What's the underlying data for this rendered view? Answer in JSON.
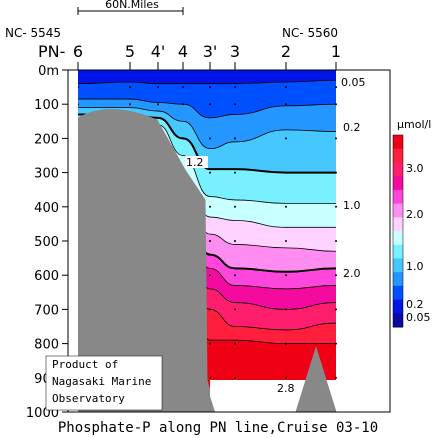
{
  "chart_data": {
    "type": "contour",
    "title": "Phosphate-P along PN line,Cruise 03-10",
    "scale_bar_label": "60N.Miles",
    "station_id_left": "NC- 5545",
    "station_id_right": "NC- 5560",
    "line_name": "PN-",
    "stations": [
      "6",
      "5",
      "4'",
      "4",
      "3'",
      "3",
      "2",
      "1"
    ],
    "depth_axis": {
      "unit_label": "0m",
      "ticks": [
        0,
        100,
        200,
        300,
        400,
        500,
        600,
        700,
        800,
        900,
        1000
      ],
      "tick_labels": [
        "0m",
        "100",
        "200",
        "300",
        "400",
        "500",
        "600",
        "700",
        "800",
        "900",
        "1000"
      ],
      "range": [
        0,
        1000
      ],
      "inverted": true
    },
    "contour_labels": [
      "0.05",
      "0.2",
      "1.2",
      "1.0",
      "2.0",
      "2.8"
    ],
    "colorbar": {
      "unit": "μmol/l",
      "tick_labels": [
        "3.0",
        "2.0",
        "1.0",
        "0.2",
        "0.05"
      ],
      "levels": [
        0.05,
        0.2,
        0.5,
        0.8,
        1.0,
        1.2,
        1.5,
        1.8,
        2.0,
        2.2,
        2.4,
        2.6,
        2.8,
        3.0
      ],
      "colors": [
        "#0a0aa0",
        "#0014e6",
        "#0050ff",
        "#2396ff",
        "#46c8ff",
        "#78f0ff",
        "#c8ffff",
        "#ffd2ff",
        "#ff8cf0",
        "#ff46dc",
        "#f50aa0",
        "#ff1e6e",
        "#ff1e3c",
        "#f00014"
      ]
    },
    "depth_profile_layers": [
      {
        "value": "0.05",
        "top": [
          0,
          0,
          0,
          0,
          0,
          0,
          0,
          0
        ]
      },
      {
        "value": "0.2",
        "top": [
          40,
          35,
          40,
          40,
          40,
          40,
          35,
          30
        ]
      },
      {
        "value": "0.5",
        "top": [
          85,
          85,
          95,
          100,
          140,
          130,
          105,
          100
        ]
      },
      {
        "value": "0.8",
        "top": [
          110,
          110,
          120,
          150,
          230,
          210,
          175,
          180
        ]
      },
      {
        "value": "1.0",
        "top": [
          130,
          130,
          140,
          200,
          290,
          290,
          300,
          300
        ]
      },
      {
        "value": "1.2",
        "top": [
          150,
          150,
          160,
          250,
          370,
          380,
          390,
          390
        ]
      },
      {
        "value": "1.5",
        "top": [
          175,
          175,
          180,
          300,
          430,
          440,
          460,
          460
        ]
      },
      {
        "value": "1.8",
        "top": [
          200,
          200,
          200,
          350,
          480,
          510,
          520,
          530
        ]
      },
      {
        "value": "2.0",
        "top": [
          220,
          220,
          220,
          400,
          540,
          580,
          590,
          580
        ]
      },
      {
        "value": "2.2",
        "top": [
          240,
          240,
          240,
          440,
          580,
          630,
          640,
          630
        ]
      },
      {
        "value": "2.4",
        "top": [
          260,
          260,
          260,
          480,
          640,
          680,
          700,
          680
        ]
      },
      {
        "value": "2.6",
        "top": [
          280,
          280,
          280,
          520,
          700,
          750,
          760,
          740
        ]
      },
      {
        "value": "2.8",
        "top": [
          300,
          300,
          300,
          560,
          790,
          790,
          800,
          800
        ]
      }
    ],
    "credit": [
      "Product of",
      "Nagasaki Marine",
      "Observatory"
    ]
  }
}
